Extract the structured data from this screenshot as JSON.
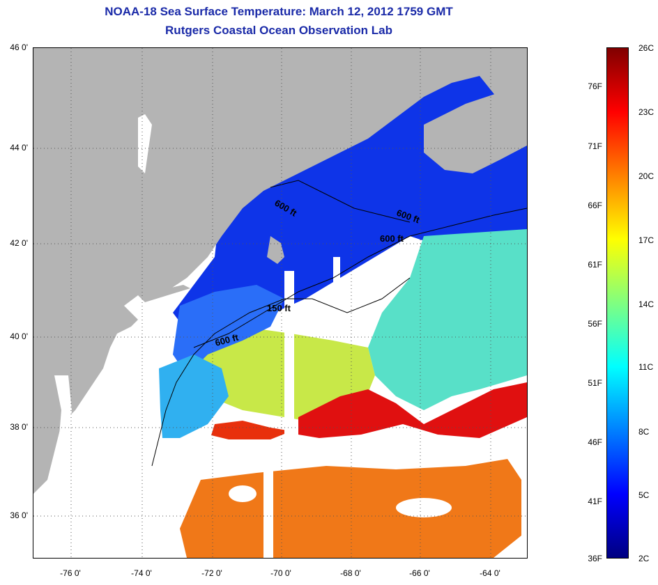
{
  "title": {
    "line1": "NOAA-18 Sea Surface Temperature:  March 12, 2012 1759 GMT",
    "line2": "Rutgers Coastal Ocean Observation Lab"
  },
  "map": {
    "lat_ticks": [
      "46 0'",
      "44 0'",
      "42 0'",
      "40 0'",
      "38 0'",
      "36 0'"
    ],
    "lon_ticks": [
      "-76 0'",
      "-74 0'",
      "-72 0'",
      "-70 0'",
      "-68 0'",
      "-66 0'",
      "-64 0'"
    ],
    "contour_labels": [
      "600 ft",
      "600 ft",
      "600 ft",
      "150 ft",
      "600 ft"
    ],
    "land_color": "#b4b4b4",
    "cloud_color": "#ffffff"
  },
  "colorbar": {
    "fahrenheit_labels": [
      "76F",
      "71F",
      "66F",
      "61F",
      "56F",
      "51F",
      "46F",
      "41F",
      "36F"
    ],
    "celsius_labels": [
      "26C",
      "23C",
      "20C",
      "17C",
      "14C",
      "11C",
      "8C",
      "5C",
      "2C"
    ],
    "colors": [
      "#000080",
      "#0000ff",
      "#0080ff",
      "#00ffff",
      "#80ff80",
      "#ffff00",
      "#ff8000",
      "#ff0000",
      "#800000"
    ]
  }
}
